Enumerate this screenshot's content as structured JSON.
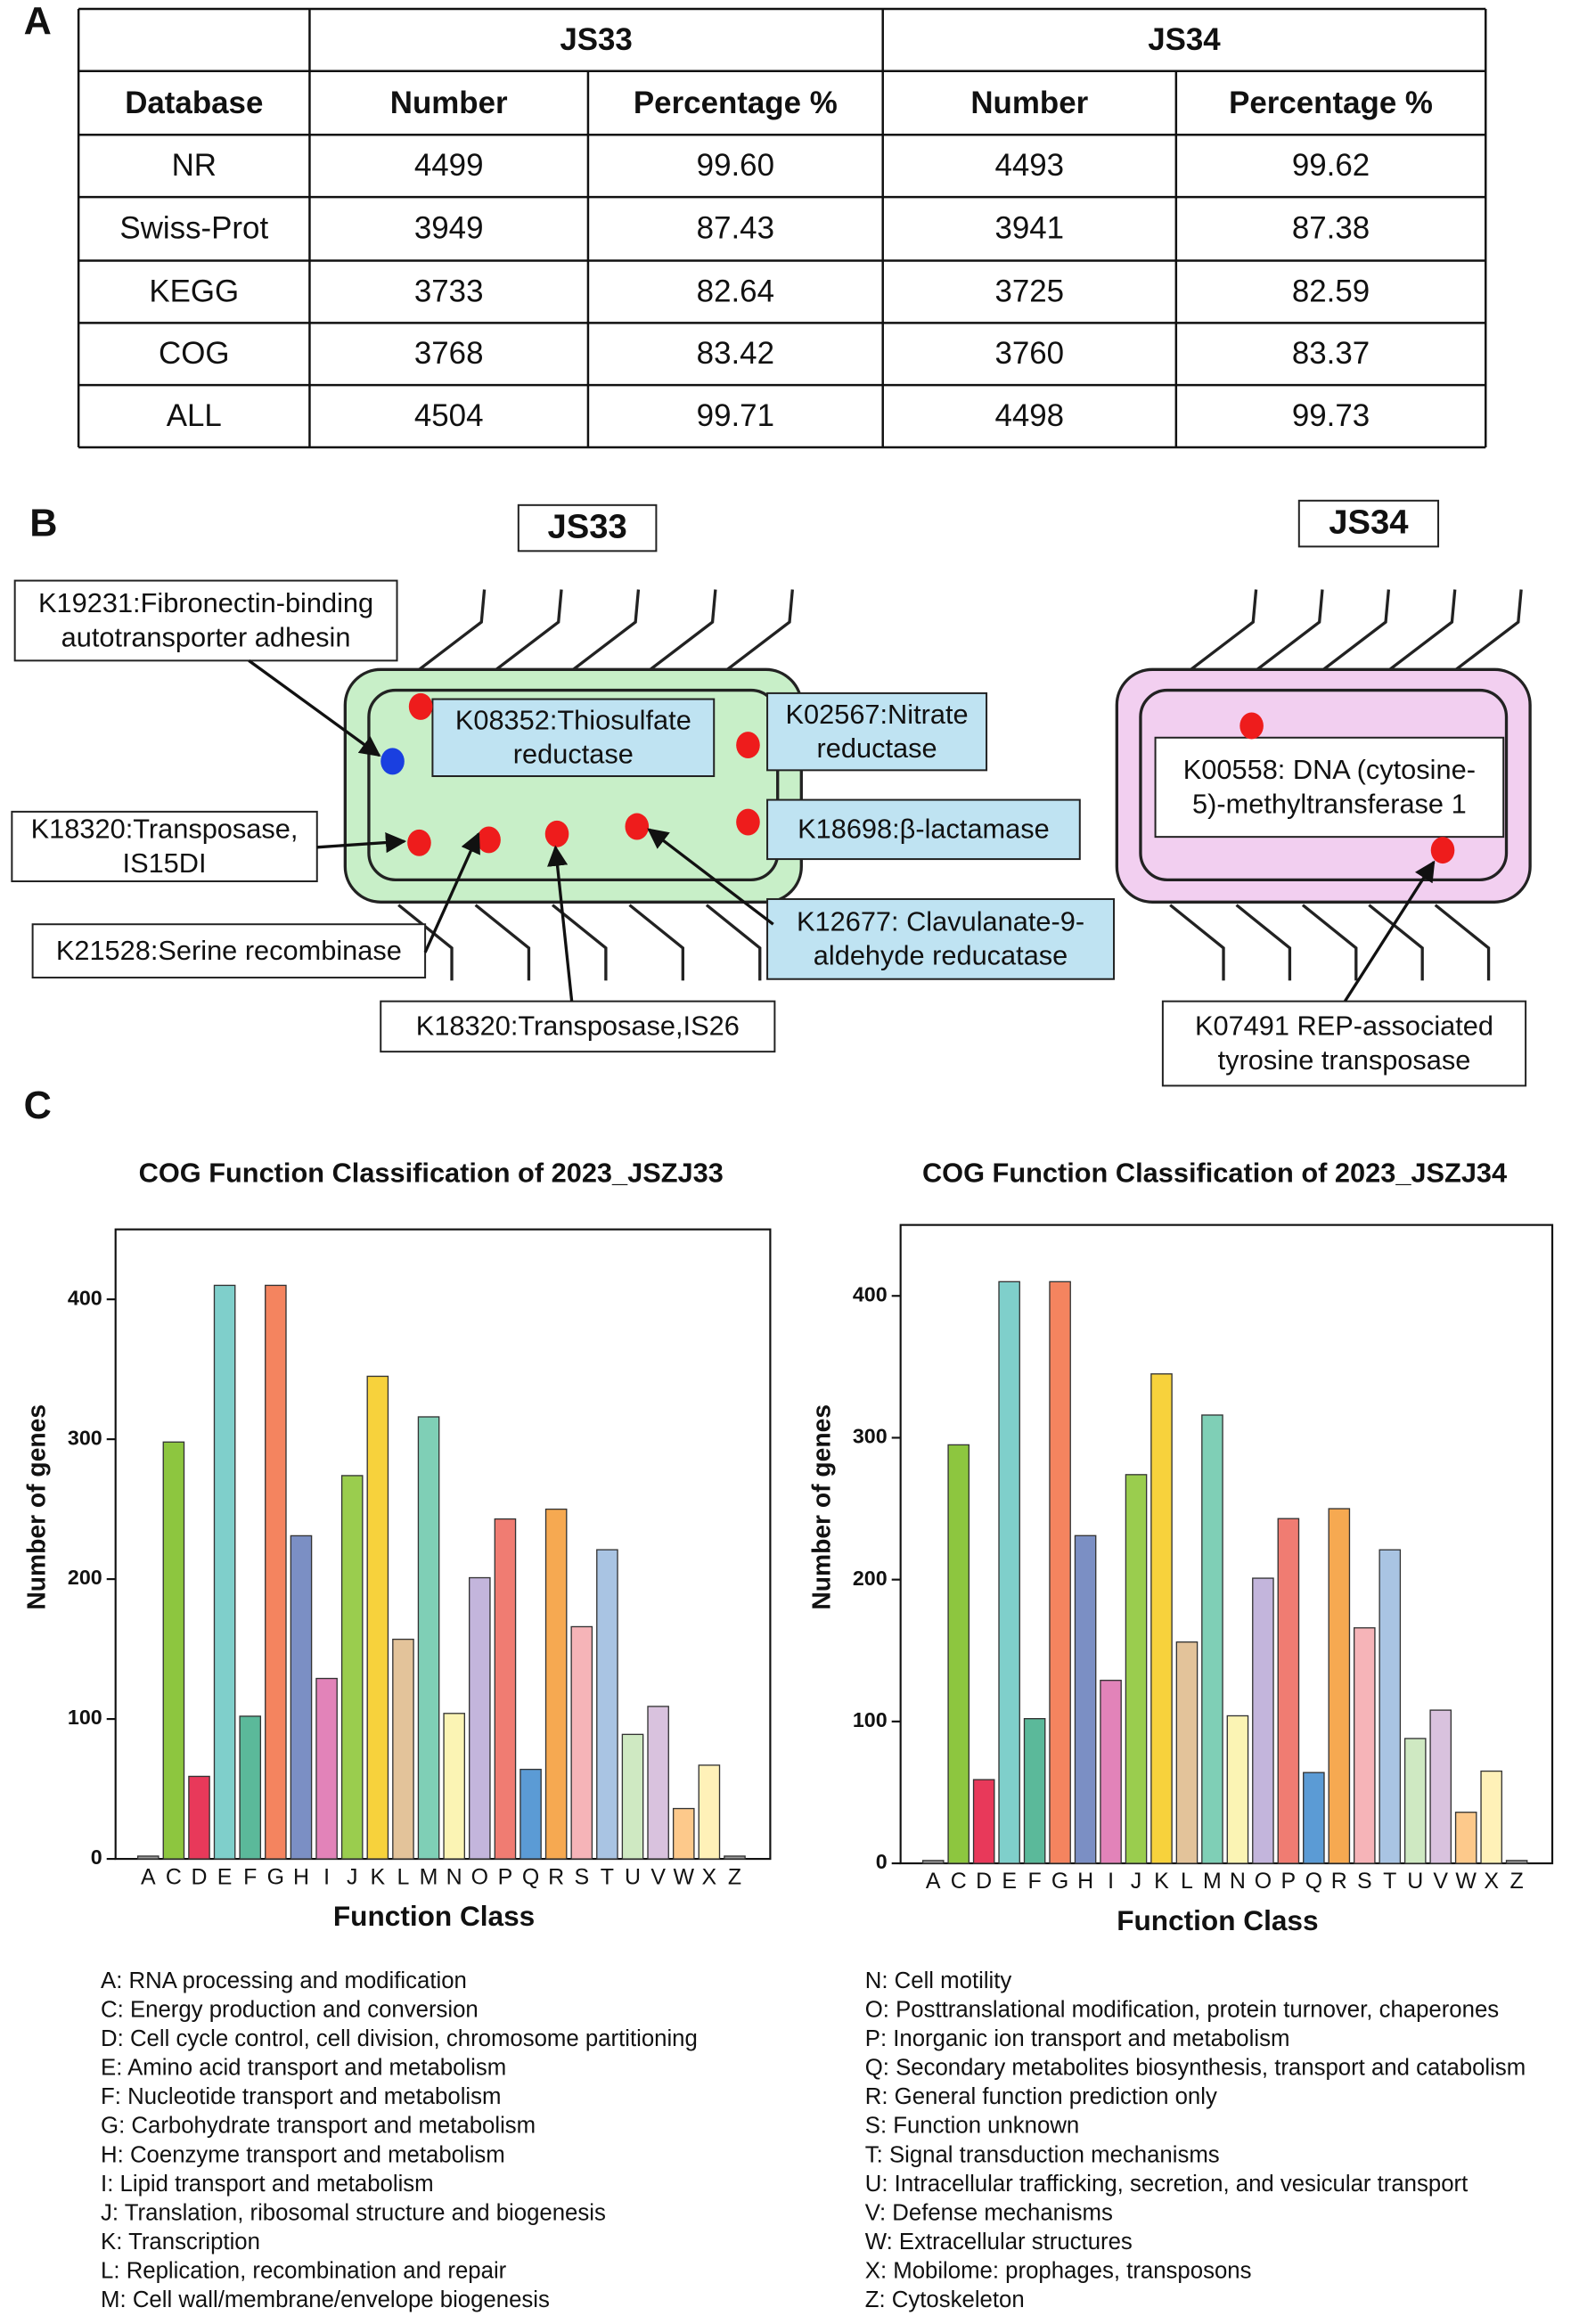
{
  "panel_labels": [
    "A",
    "B",
    "C"
  ],
  "table": {
    "group_headers": [
      "JS33",
      "JS34"
    ],
    "columns": [
      "Database",
      "Number",
      "Percentage %",
      "Number",
      "Percentage %"
    ],
    "rows": [
      [
        "NR",
        "4499",
        "99.60",
        "4493",
        "99.62"
      ],
      [
        "Swiss-Prot",
        "3949",
        "87.43",
        "3941",
        "87.38"
      ],
      [
        "KEGG",
        "3733",
        "82.64",
        "3725",
        "82.59"
      ],
      [
        "COG",
        "3768",
        "83.42",
        "3760",
        "83.37"
      ],
      [
        "ALL",
        "4504",
        "99.71",
        "4498",
        "99.73"
      ]
    ]
  },
  "diagram": {
    "strains": [
      "JS33",
      "JS34"
    ],
    "labels": [
      [
        "K19231:Fibronectin-binding",
        "autotransporter adhesin"
      ],
      [
        "K08352:Thiosulfate",
        "reductase"
      ],
      [
        "K02567:Nitrate",
        "reductase"
      ],
      [
        "K18698:β-lactamase"
      ],
      [
        "K18320:Transposase,",
        "IS15DI"
      ],
      [
        "K21528:Serine recombinase"
      ],
      [
        "K18320:Transposase,IS26"
      ],
      [
        "K12677: Clavulanate-9-",
        "aldehyde reducatase"
      ],
      [
        "K00558: DNA (cytosine-",
        "5)-methyltransferase 1"
      ],
      [
        "K07491  REP-associated",
        "tyrosine transposase"
      ]
    ]
  },
  "chart_data": [
    {
      "type": "bar",
      "title": "COG Function Classification of 2023_JSZJ33",
      "x_label": "Function Class",
      "y_label": "Number of genes",
      "categories": [
        "A",
        "C",
        "D",
        "E",
        "F",
        "G",
        "H",
        "I",
        "J",
        "K",
        "L",
        "M",
        "N",
        "O",
        "P",
        "Q",
        "R",
        "S",
        "T",
        "U",
        "V",
        "W",
        "X",
        "Z"
      ],
      "values": [
        2,
        298,
        59,
        410,
        102,
        410,
        231,
        129,
        274,
        345,
        157,
        316,
        104,
        201,
        243,
        64,
        250,
        166,
        221,
        89,
        109,
        36,
        67,
        2
      ],
      "colors": [
        "#9a9a9a",
        "#8dc63f",
        "#e8395a",
        "#7fcfcb",
        "#5bb99a",
        "#f4845f",
        "#7b8fc4",
        "#e283b9",
        "#9acd4e",
        "#f7d23c",
        "#e3c39a",
        "#7fcfb6",
        "#fbf4b4",
        "#c3b5dc",
        "#f07c72",
        "#5b9bd5",
        "#f6a951",
        "#f6b4b8",
        "#a9c4e3",
        "#cfe9c2",
        "#d9c2de",
        "#fdc98b",
        "#fff1b8",
        "#9a9a9a"
      ],
      "ylim": [
        0,
        450
      ],
      "yticks": [
        0,
        100,
        200,
        300,
        400
      ]
    },
    {
      "type": "bar",
      "title": "COG Function Classification of 2023_JSZJ34",
      "x_label": "Function Class",
      "y_label": "Number of genes",
      "categories": [
        "A",
        "C",
        "D",
        "E",
        "F",
        "G",
        "H",
        "I",
        "J",
        "K",
        "L",
        "M",
        "N",
        "O",
        "P",
        "Q",
        "R",
        "S",
        "T",
        "U",
        "V",
        "W",
        "X",
        "Z"
      ],
      "values": [
        2,
        295,
        59,
        410,
        102,
        410,
        231,
        129,
        274,
        345,
        156,
        316,
        104,
        201,
        243,
        64,
        250,
        166,
        221,
        88,
        108,
        36,
        65,
        2
      ],
      "colors": [
        "#9a9a9a",
        "#8dc63f",
        "#e8395a",
        "#7fcfcb",
        "#5bb99a",
        "#f4845f",
        "#7b8fc4",
        "#e283b9",
        "#9acd4e",
        "#f7d23c",
        "#e3c39a",
        "#7fcfb6",
        "#fbf4b4",
        "#c3b5dc",
        "#f07c72",
        "#5b9bd5",
        "#f6a951",
        "#f6b4b8",
        "#a9c4e3",
        "#cfe9c2",
        "#d9c2de",
        "#fdc98b",
        "#fff1b8",
        "#9a9a9a"
      ],
      "ylim": [
        0,
        450
      ],
      "yticks": [
        0,
        100,
        200,
        300,
        400
      ]
    }
  ],
  "legend": [
    "A: RNA processing and modification",
    "C: Energy production and conversion",
    "D: Cell cycle control, cell division, chromosome partitioning",
    "E: Amino acid transport and metabolism",
    "F: Nucleotide transport and metabolism",
    "G: Carbohydrate transport and metabolism",
    "H: Coenzyme transport and metabolism",
    "I: Lipid transport and metabolism",
    "J: Translation, ribosomal structure and biogenesis",
    "K: Transcription",
    "L: Replication, recombination and repair",
    "M: Cell wall/membrane/envelope biogenesis",
    "N: Cell motility",
    "O: Posttranslational modification, protein turnover, chaperones",
    "P: Inorganic ion transport and metabolism",
    "Q: Secondary metabolites biosynthesis, transport and catabolism",
    "R: General function prediction only",
    "S: Function unknown",
    "T: Signal transduction mechanisms",
    "U: Intracellular trafficking, secretion, and vesicular transport",
    "V: Defense mechanisms",
    "W: Extracellular structures",
    "X: Mobilome: prophages, transposons",
    "Z: Cytoskeleton"
  ]
}
